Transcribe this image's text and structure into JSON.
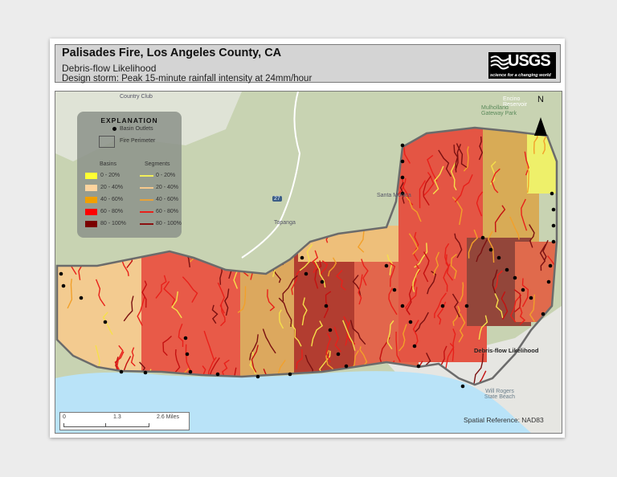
{
  "header": {
    "title": "Palisades Fire, Los Angeles County, CA",
    "subtitle": "Debris-flow Likelihood",
    "design_storm": "Design storm: Peak 15-minute rainfall intensity at 24mm/hour",
    "logo_text": "USGS",
    "logo_tagline": "science for a changing world"
  },
  "legend": {
    "title": "EXPLANATION",
    "basin_outlets": "Basin Outlets",
    "fire_perimeter": "Fire Perimeter",
    "basins_header": "Basins",
    "segments_header": "Segments",
    "classes": [
      {
        "label": "0 - 20%",
        "basin_color": "#ffff33",
        "segment_color": "#f2ee5a"
      },
      {
        "label": "20 - 40%",
        "basin_color": "#fdd49e",
        "segment_color": "#f6c98c"
      },
      {
        "label": "40 - 60%",
        "basin_color": "#f0a000",
        "segment_color": "#e6a23a"
      },
      {
        "label": "60 - 80%",
        "basin_color": "#ff0000",
        "segment_color": "#e8201a"
      },
      {
        "label": "80 - 100%",
        "basin_color": "#7a0000",
        "segment_color": "#8a1010"
      }
    ]
  },
  "map_labels": {
    "country_club": "Country Club",
    "topanga": "Topanga",
    "santa_monica": "Santa Monica",
    "mulholland": "Mulholland Gateway Park",
    "encino": "Encino Reservoir",
    "debris_flow": "Debris-flow Likelihood",
    "state_beach": "Will Rogers State Beach",
    "route": "27",
    "north": "N"
  },
  "scale_bar": {
    "ticks": [
      "0",
      "1.3",
      "2.6 Miles"
    ]
  },
  "spatial_reference": "Spatial Reference: NAD83",
  "colors": {
    "ocean": "#b9e3f8",
    "terrain": "#c8d3b2",
    "perimeter": "#6b6b6b"
  }
}
